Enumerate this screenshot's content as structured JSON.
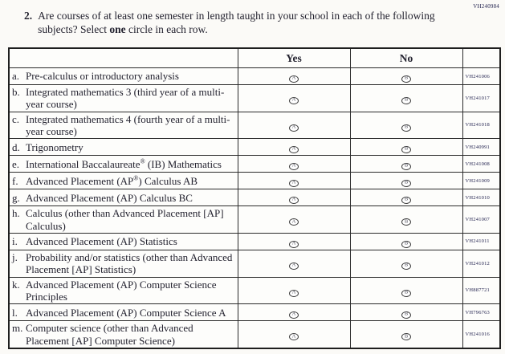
{
  "page": {
    "form_code_top_right": "VH240984"
  },
  "question": {
    "number": "2.",
    "text_before_bold": "Are courses of at least one semester in length taught in your school in each of the following subjects? Select ",
    "bold_word": "one",
    "text_after_bold": " circle in each row."
  },
  "table": {
    "headers": {
      "course": "",
      "yes": "Yes",
      "no": "No",
      "code": ""
    },
    "response_circle": {
      "yes_glyph": "A",
      "no_glyph": "B"
    },
    "rows": [
      {
        "letter": "a.",
        "label": "Pre-calculus or introductory analysis",
        "code": "VH241006"
      },
      {
        "letter": "b.",
        "label": "Integrated mathematics 3 (third year of a multi-year course)",
        "code": "VH241017"
      },
      {
        "letter": "c.",
        "label": "Integrated mathematics 4 (fourth year of a multi-year course)",
        "code": "VH241018"
      },
      {
        "letter": "d.",
        "label": "Trigonometry",
        "code": "VH240991"
      },
      {
        "letter": "e.",
        "label": "International Baccalaureate® (IB) Mathematics",
        "code": "VH241008"
      },
      {
        "letter": "f.",
        "label": "Advanced Placement (AP®) Calculus AB",
        "code": "VH241009"
      },
      {
        "letter": "g.",
        "label": "Advanced Placement (AP) Calculus BC",
        "code": "VH241010"
      },
      {
        "letter": "h.",
        "label": "Calculus (other than Advanced Placement [AP] Calculus)",
        "code": "VH241007"
      },
      {
        "letter": "i.",
        "label": "Advanced Placement (AP) Statistics",
        "code": "VH241011"
      },
      {
        "letter": "j.",
        "label": "Probability and/or statistics (other than Advanced Placement [AP] Statistics)",
        "code": "VH241012"
      },
      {
        "letter": "k.",
        "label": "Advanced Placement (AP) Computer Science Principles",
        "code": "VH887721"
      },
      {
        "letter": "l.",
        "label": "Advanced Placement (AP) Computer Science A",
        "code": "VH796763"
      },
      {
        "letter": "m.",
        "label": "Computer science (other than Advanced Placement [AP] Computer Science)",
        "code": "VH241016"
      }
    ]
  }
}
